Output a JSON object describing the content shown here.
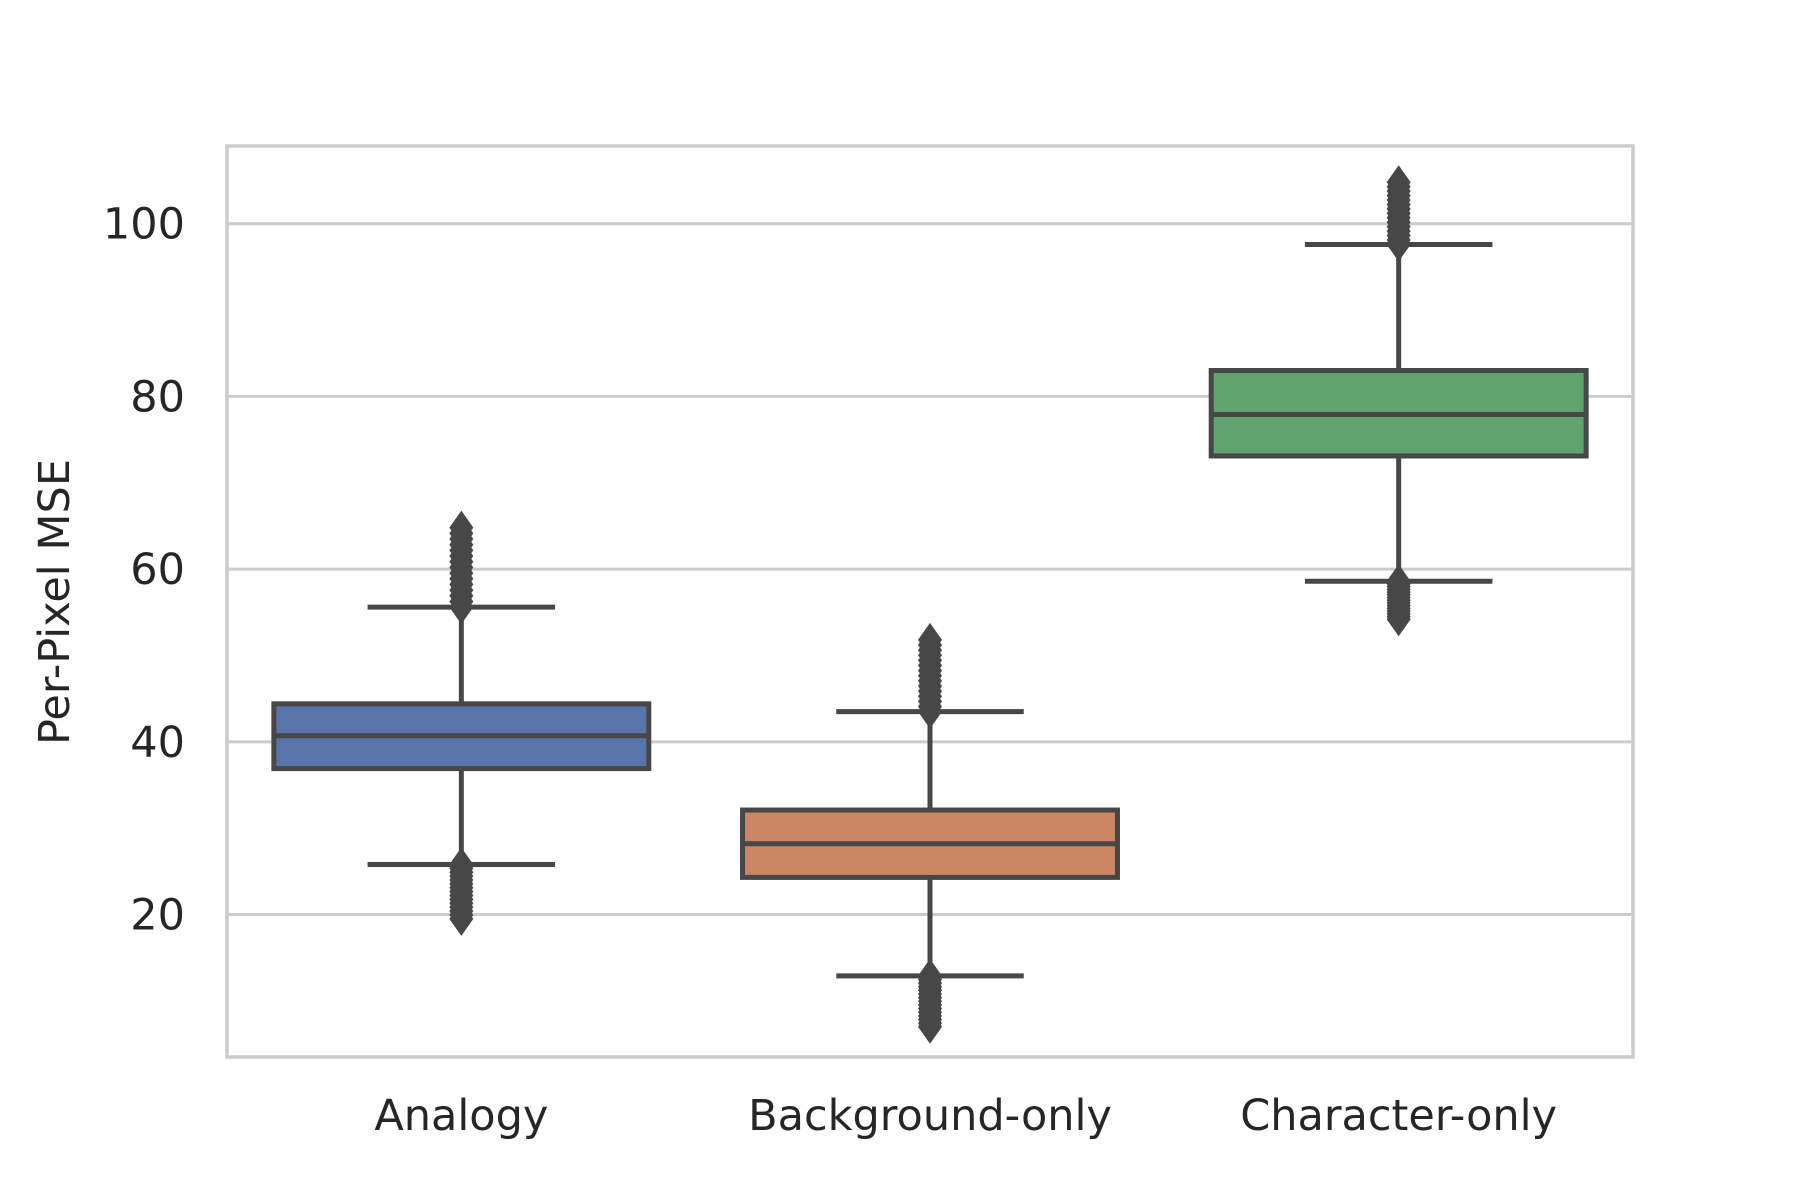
{
  "chart_data": {
    "type": "box",
    "title": "",
    "xlabel": "",
    "ylabel": "Per-Pixel MSE",
    "ylim": [
      3.5,
      109
    ],
    "yticks": [
      20,
      40,
      60,
      80,
      100
    ],
    "grid": "horizontal",
    "categories": [
      "Analogy",
      "Background-only",
      "Character-only"
    ],
    "boxes": [
      {
        "category": "Analogy",
        "color": "#5874a8",
        "whisker_low": 25.8,
        "q1": 36.9,
        "median": 40.7,
        "q3": 44.4,
        "whisker_high": 55.6,
        "outliers_low_range": [
          19.5,
          25.8
        ],
        "outliers_high_range": [
          55.6,
          64.8
        ]
      },
      {
        "category": "Background-only",
        "color": "#cc8562",
        "whisker_low": 12.9,
        "q1": 24.3,
        "median": 28.2,
        "q3": 32.1,
        "whisker_high": 43.5,
        "outliers_low_range": [
          7.0,
          12.9
        ],
        "outliers_high_range": [
          43.5,
          51.8
        ]
      },
      {
        "category": "Character-only",
        "color": "#60a270",
        "whisker_low": 58.6,
        "q1": 73.1,
        "median": 77.9,
        "q3": 83.0,
        "whisker_high": 97.6,
        "outliers_low_range": [
          54.2,
          58.6
        ],
        "outliers_high_range": [
          97.6,
          104.8
        ]
      }
    ],
    "colors": {
      "grid": "#cccccc",
      "frame": "#cccccc",
      "lines": "#474747",
      "text": "#262626"
    }
  }
}
